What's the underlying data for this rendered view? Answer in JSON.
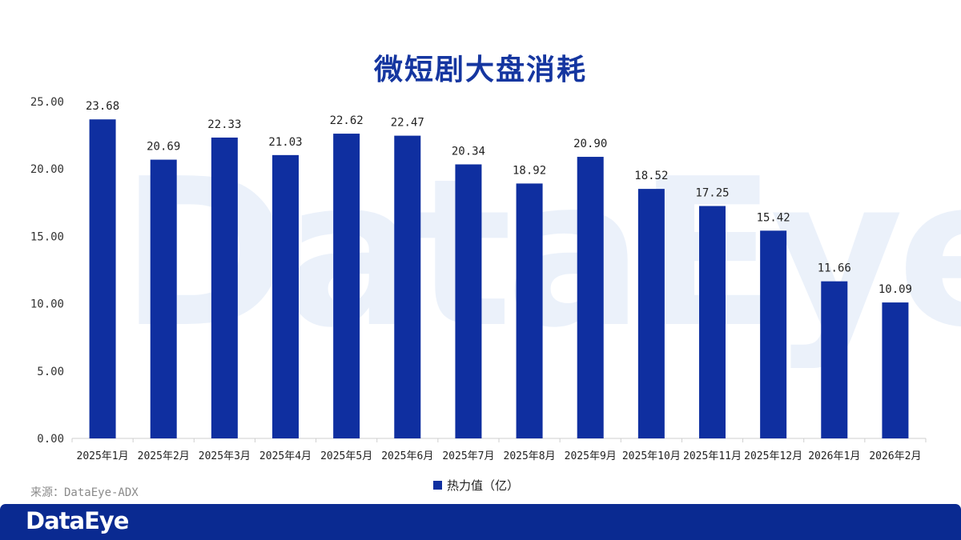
{
  "title": "微短剧大盘消耗",
  "watermark": "DataEye",
  "source": "来源：DataEye-ADX",
  "footer": {
    "logo": "DataEye"
  },
  "colors": {
    "bar": "#0f2fa0",
    "title": "#1536a0",
    "footer": "#0a2a91"
  },
  "chart_data": {
    "type": "bar",
    "title": "微短剧大盘消耗",
    "categories": [
      "2025年1月",
      "2025年2月",
      "2025年3月",
      "2025年4月",
      "2025年5月",
      "2025年6月",
      "2025年7月",
      "2025年8月",
      "2025年9月",
      "2025年10月",
      "2025年11月",
      "2025年12月",
      "2026年1月",
      "2026年2月"
    ],
    "series": [
      {
        "name": "热力值（亿）",
        "values": [
          23.68,
          20.69,
          22.33,
          21.03,
          22.62,
          22.47,
          20.34,
          18.92,
          20.9,
          18.52,
          17.25,
          15.42,
          11.66,
          10.09
        ]
      }
    ],
    "ylim": [
      0,
      25
    ],
    "yticks": [
      "0.00",
      "5.00",
      "10.00",
      "15.00",
      "20.00",
      "25.00"
    ],
    "grid": false,
    "legend": "bottom"
  }
}
